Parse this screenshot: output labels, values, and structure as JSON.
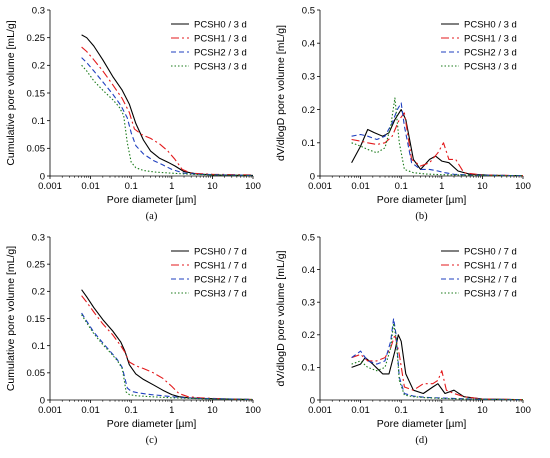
{
  "chart_data": [
    {
      "type": "line",
      "panel": "(a)",
      "xlabel": "Pore diameter [µm]",
      "ylabel": "Cumulative pore  volume [mL/g]",
      "xscale": "log",
      "xlim": [
        0.001,
        100
      ],
      "ylim": [
        0,
        0.3
      ],
      "xticks": [
        "0.001",
        "0.01",
        "0.1",
        "1",
        "10",
        "100"
      ],
      "yticks": [
        "0",
        "0.05",
        "0.1",
        "0.15",
        "0.2",
        "0.25",
        "0.3"
      ],
      "legend": "top-right",
      "series": [
        {
          "name": "PCSH0 / 3 d",
          "color": "#000000",
          "dash": "solid",
          "x": [
            0.006,
            0.008,
            0.012,
            0.02,
            0.035,
            0.06,
            0.09,
            0.13,
            0.2,
            0.3,
            0.5,
            0.8,
            1.2,
            2,
            4,
            10,
            100
          ],
          "y": [
            0.255,
            0.25,
            0.235,
            0.21,
            0.18,
            0.155,
            0.13,
            0.095,
            0.065,
            0.045,
            0.032,
            0.025,
            0.018,
            0.008,
            0.004,
            0.002,
            0.001
          ]
        },
        {
          "name": "PCSH1 / 3 d",
          "color": "#e31a1c",
          "dash": "dashdot",
          "x": [
            0.006,
            0.008,
            0.012,
            0.02,
            0.035,
            0.06,
            0.09,
            0.12,
            0.18,
            0.3,
            0.5,
            0.8,
            1.2,
            1.8,
            3,
            10,
            100
          ],
          "y": [
            0.233,
            0.225,
            0.21,
            0.19,
            0.165,
            0.14,
            0.115,
            0.085,
            0.075,
            0.068,
            0.058,
            0.045,
            0.03,
            0.012,
            0.005,
            0.003,
            0.002
          ]
        },
        {
          "name": "PCSH2 / 3 d",
          "color": "#1f3fbf",
          "dash": "dash",
          "x": [
            0.006,
            0.008,
            0.012,
            0.02,
            0.035,
            0.055,
            0.08,
            0.1,
            0.13,
            0.2,
            0.35,
            0.6,
            1.0,
            2,
            5,
            20,
            100
          ],
          "y": [
            0.214,
            0.205,
            0.19,
            0.17,
            0.148,
            0.128,
            0.105,
            0.078,
            0.055,
            0.04,
            0.028,
            0.02,
            0.012,
            0.005,
            0.003,
            0.002,
            0.001
          ]
        },
        {
          "name": "PCSH3 / 3 d",
          "color": "#1a7a1a",
          "dash": "dot",
          "x": [
            0.006,
            0.008,
            0.012,
            0.02,
            0.035,
            0.05,
            0.065,
            0.08,
            0.1,
            0.13,
            0.2,
            0.4,
            1,
            3,
            10,
            100
          ],
          "y": [
            0.2,
            0.19,
            0.172,
            0.155,
            0.138,
            0.125,
            0.11,
            0.06,
            0.025,
            0.015,
            0.01,
            0.007,
            0.005,
            0.003,
            0.002,
            0.001
          ]
        }
      ]
    },
    {
      "type": "line",
      "panel": "(b)",
      "xlabel": "Pore diameter [µm]",
      "ylabel": "dV/dlogD pore volume [mL/g]",
      "xscale": "log",
      "xlim": [
        0.001,
        100
      ],
      "ylim": [
        0,
        0.5
      ],
      "xticks": [
        "0.001",
        "0.01",
        "0.1",
        "1",
        "10",
        "100"
      ],
      "yticks": [
        "0",
        "0.1",
        "0.2",
        "0.3",
        "0.4",
        "0.5"
      ],
      "legend": "top-right",
      "series": [
        {
          "name": "PCSH0 / 3 d",
          "color": "#000000",
          "dash": "solid",
          "x": [
            0.006,
            0.01,
            0.015,
            0.022,
            0.035,
            0.05,
            0.07,
            0.1,
            0.13,
            0.2,
            0.3,
            0.5,
            0.7,
            1.0,
            1.5,
            2.5,
            5,
            20,
            100
          ],
          "y": [
            0.04,
            0.09,
            0.14,
            0.13,
            0.12,
            0.13,
            0.17,
            0.2,
            0.17,
            0.05,
            0.02,
            0.05,
            0.06,
            0.045,
            0.04,
            0.015,
            0.005,
            0.002,
            0.001
          ]
        },
        {
          "name": "PCSH1 / 3 d",
          "color": "#e31a1c",
          "dash": "dashdot",
          "x": [
            0.006,
            0.01,
            0.015,
            0.025,
            0.04,
            0.06,
            0.09,
            0.12,
            0.18,
            0.3,
            0.5,
            0.8,
            1.1,
            1.5,
            2.2,
            3.5,
            10,
            100
          ],
          "y": [
            0.11,
            0.105,
            0.1,
            0.095,
            0.1,
            0.12,
            0.17,
            0.19,
            0.05,
            0.03,
            0.04,
            0.07,
            0.1,
            0.05,
            0.05,
            0.01,
            0.003,
            0.001
          ]
        },
        {
          "name": "PCSH2 / 3 d",
          "color": "#1f3fbf",
          "dash": "dash",
          "x": [
            0.006,
            0.01,
            0.015,
            0.025,
            0.04,
            0.06,
            0.08,
            0.1,
            0.12,
            0.18,
            0.3,
            0.5,
            0.8,
            1.2,
            2,
            5,
            20,
            100
          ],
          "y": [
            0.12,
            0.125,
            0.12,
            0.11,
            0.12,
            0.16,
            0.2,
            0.22,
            0.15,
            0.04,
            0.02,
            0.02,
            0.015,
            0.01,
            0.005,
            0.003,
            0.002,
            0.001
          ]
        },
        {
          "name": "PCSH3 / 3 d",
          "color": "#1a7a1a",
          "dash": "dot",
          "x": [
            0.006,
            0.01,
            0.015,
            0.025,
            0.04,
            0.055,
            0.07,
            0.09,
            0.12,
            0.2,
            0.4,
            1,
            3,
            10,
            100
          ],
          "y": [
            0.1,
            0.09,
            0.08,
            0.07,
            0.085,
            0.15,
            0.235,
            0.1,
            0.02,
            0.01,
            0.006,
            0.004,
            0.003,
            0.002,
            0.001
          ]
        }
      ]
    },
    {
      "type": "line",
      "panel": "(c)",
      "xlabel": "Pore diameter [µm]",
      "ylabel": "Cumulative pore  volume [mL/g]",
      "xscale": "log",
      "xlim": [
        0.001,
        100
      ],
      "ylim": [
        0,
        0.3
      ],
      "xticks": [
        "0.001",
        "0.01",
        "0.1",
        "1",
        "10",
        "100"
      ],
      "yticks": [
        "0",
        "0.05",
        "0.1",
        "0.15",
        "0.2",
        "0.25",
        "0.3"
      ],
      "legend": "top-right",
      "series": [
        {
          "name": "PCSH0 / 7 d",
          "color": "#000000",
          "dash": "solid",
          "x": [
            0.006,
            0.008,
            0.012,
            0.02,
            0.035,
            0.055,
            0.07,
            0.09,
            0.13,
            0.2,
            0.35,
            0.6,
            1.0,
            1.5,
            2.5,
            5,
            20,
            100
          ],
          "y": [
            0.203,
            0.19,
            0.17,
            0.148,
            0.127,
            0.107,
            0.09,
            0.065,
            0.048,
            0.038,
            0.028,
            0.018,
            0.01,
            0.006,
            0.004,
            0.003,
            0.002,
            0.001
          ]
        },
        {
          "name": "PCSH1 / 7 d",
          "color": "#e31a1c",
          "dash": "dashdot",
          "x": [
            0.006,
            0.008,
            0.012,
            0.02,
            0.035,
            0.055,
            0.07,
            0.09,
            0.13,
            0.2,
            0.35,
            0.6,
            1.0,
            1.5,
            2.5,
            5,
            20,
            100
          ],
          "y": [
            0.192,
            0.18,
            0.162,
            0.14,
            0.12,
            0.1,
            0.088,
            0.07,
            0.063,
            0.058,
            0.05,
            0.04,
            0.025,
            0.012,
            0.006,
            0.004,
            0.002,
            0.001
          ]
        },
        {
          "name": "PCSH2 / 7 d",
          "color": "#1f3fbf",
          "dash": "dash",
          "x": [
            0.006,
            0.008,
            0.012,
            0.02,
            0.03,
            0.045,
            0.06,
            0.07,
            0.08,
            0.1,
            0.15,
            0.3,
            0.6,
            1.0,
            2,
            5,
            20,
            100
          ],
          "y": [
            0.16,
            0.145,
            0.125,
            0.105,
            0.09,
            0.075,
            0.06,
            0.04,
            0.022,
            0.016,
            0.013,
            0.01,
            0.008,
            0.006,
            0.004,
            0.003,
            0.002,
            0.001
          ]
        },
        {
          "name": "PCSH3 / 7 d",
          "color": "#1a7a1a",
          "dash": "dot",
          "x": [
            0.006,
            0.008,
            0.012,
            0.02,
            0.03,
            0.045,
            0.06,
            0.068,
            0.075,
            0.09,
            0.13,
            0.3,
            1,
            3,
            10,
            100
          ],
          "y": [
            0.157,
            0.142,
            0.122,
            0.102,
            0.088,
            0.073,
            0.058,
            0.035,
            0.015,
            0.01,
            0.008,
            0.006,
            0.004,
            0.003,
            0.002,
            0.001
          ]
        }
      ]
    },
    {
      "type": "line",
      "panel": "(d)",
      "xlabel": "Pore diameter [µm]",
      "ylabel": "dV/dlogD pore volume [mL/g]",
      "xscale": "log",
      "xlim": [
        0.001,
        100
      ],
      "ylim": [
        0,
        0.5
      ],
      "xticks": [
        "0.001",
        "0.01",
        "0.1",
        "1",
        "10",
        "100"
      ],
      "yticks": [
        "0",
        "0.1",
        "0.2",
        "0.3",
        "0.4",
        "0.5"
      ],
      "legend": "top-right",
      "series": [
        {
          "name": "PCSH0 / 7 d",
          "color": "#000000",
          "dash": "solid",
          "x": [
            0.006,
            0.01,
            0.013,
            0.02,
            0.035,
            0.05,
            0.07,
            0.085,
            0.1,
            0.13,
            0.2,
            0.35,
            0.6,
            0.8,
            1.2,
            2,
            3.5,
            10,
            100
          ],
          "y": [
            0.1,
            0.11,
            0.13,
            0.11,
            0.08,
            0.08,
            0.15,
            0.2,
            0.18,
            0.08,
            0.03,
            0.02,
            0.04,
            0.05,
            0.02,
            0.03,
            0.01,
            0.003,
            0.001
          ]
        },
        {
          "name": "PCSH1 / 7 d",
          "color": "#e31a1c",
          "dash": "dashdot",
          "x": [
            0.006,
            0.01,
            0.015,
            0.025,
            0.04,
            0.055,
            0.07,
            0.09,
            0.12,
            0.2,
            0.35,
            0.6,
            0.8,
            1.0,
            1.3,
            2,
            3.5,
            10,
            100
          ],
          "y": [
            0.13,
            0.14,
            0.12,
            0.12,
            0.13,
            0.16,
            0.2,
            0.14,
            0.04,
            0.03,
            0.05,
            0.05,
            0.06,
            0.09,
            0.03,
            0.02,
            0.01,
            0.003,
            0.001
          ]
        },
        {
          "name": "PCSH2 / 7 d",
          "color": "#1f3fbf",
          "dash": "dash",
          "x": [
            0.006,
            0.01,
            0.015,
            0.025,
            0.04,
            0.055,
            0.065,
            0.075,
            0.09,
            0.12,
            0.2,
            0.4,
            1,
            3,
            10,
            100
          ],
          "y": [
            0.13,
            0.15,
            0.12,
            0.11,
            0.12,
            0.18,
            0.25,
            0.2,
            0.07,
            0.02,
            0.012,
            0.008,
            0.006,
            0.004,
            0.002,
            0.001
          ]
        },
        {
          "name": "PCSH3 / 7 d",
          "color": "#1a7a1a",
          "dash": "dot",
          "x": [
            0.006,
            0.01,
            0.015,
            0.025,
            0.04,
            0.055,
            0.065,
            0.075,
            0.09,
            0.12,
            0.2,
            0.4,
            1,
            3,
            10,
            100
          ],
          "y": [
            0.11,
            0.12,
            0.1,
            0.09,
            0.1,
            0.16,
            0.235,
            0.19,
            0.06,
            0.015,
            0.01,
            0.007,
            0.005,
            0.003,
            0.002,
            0.001
          ]
        }
      ]
    }
  ]
}
